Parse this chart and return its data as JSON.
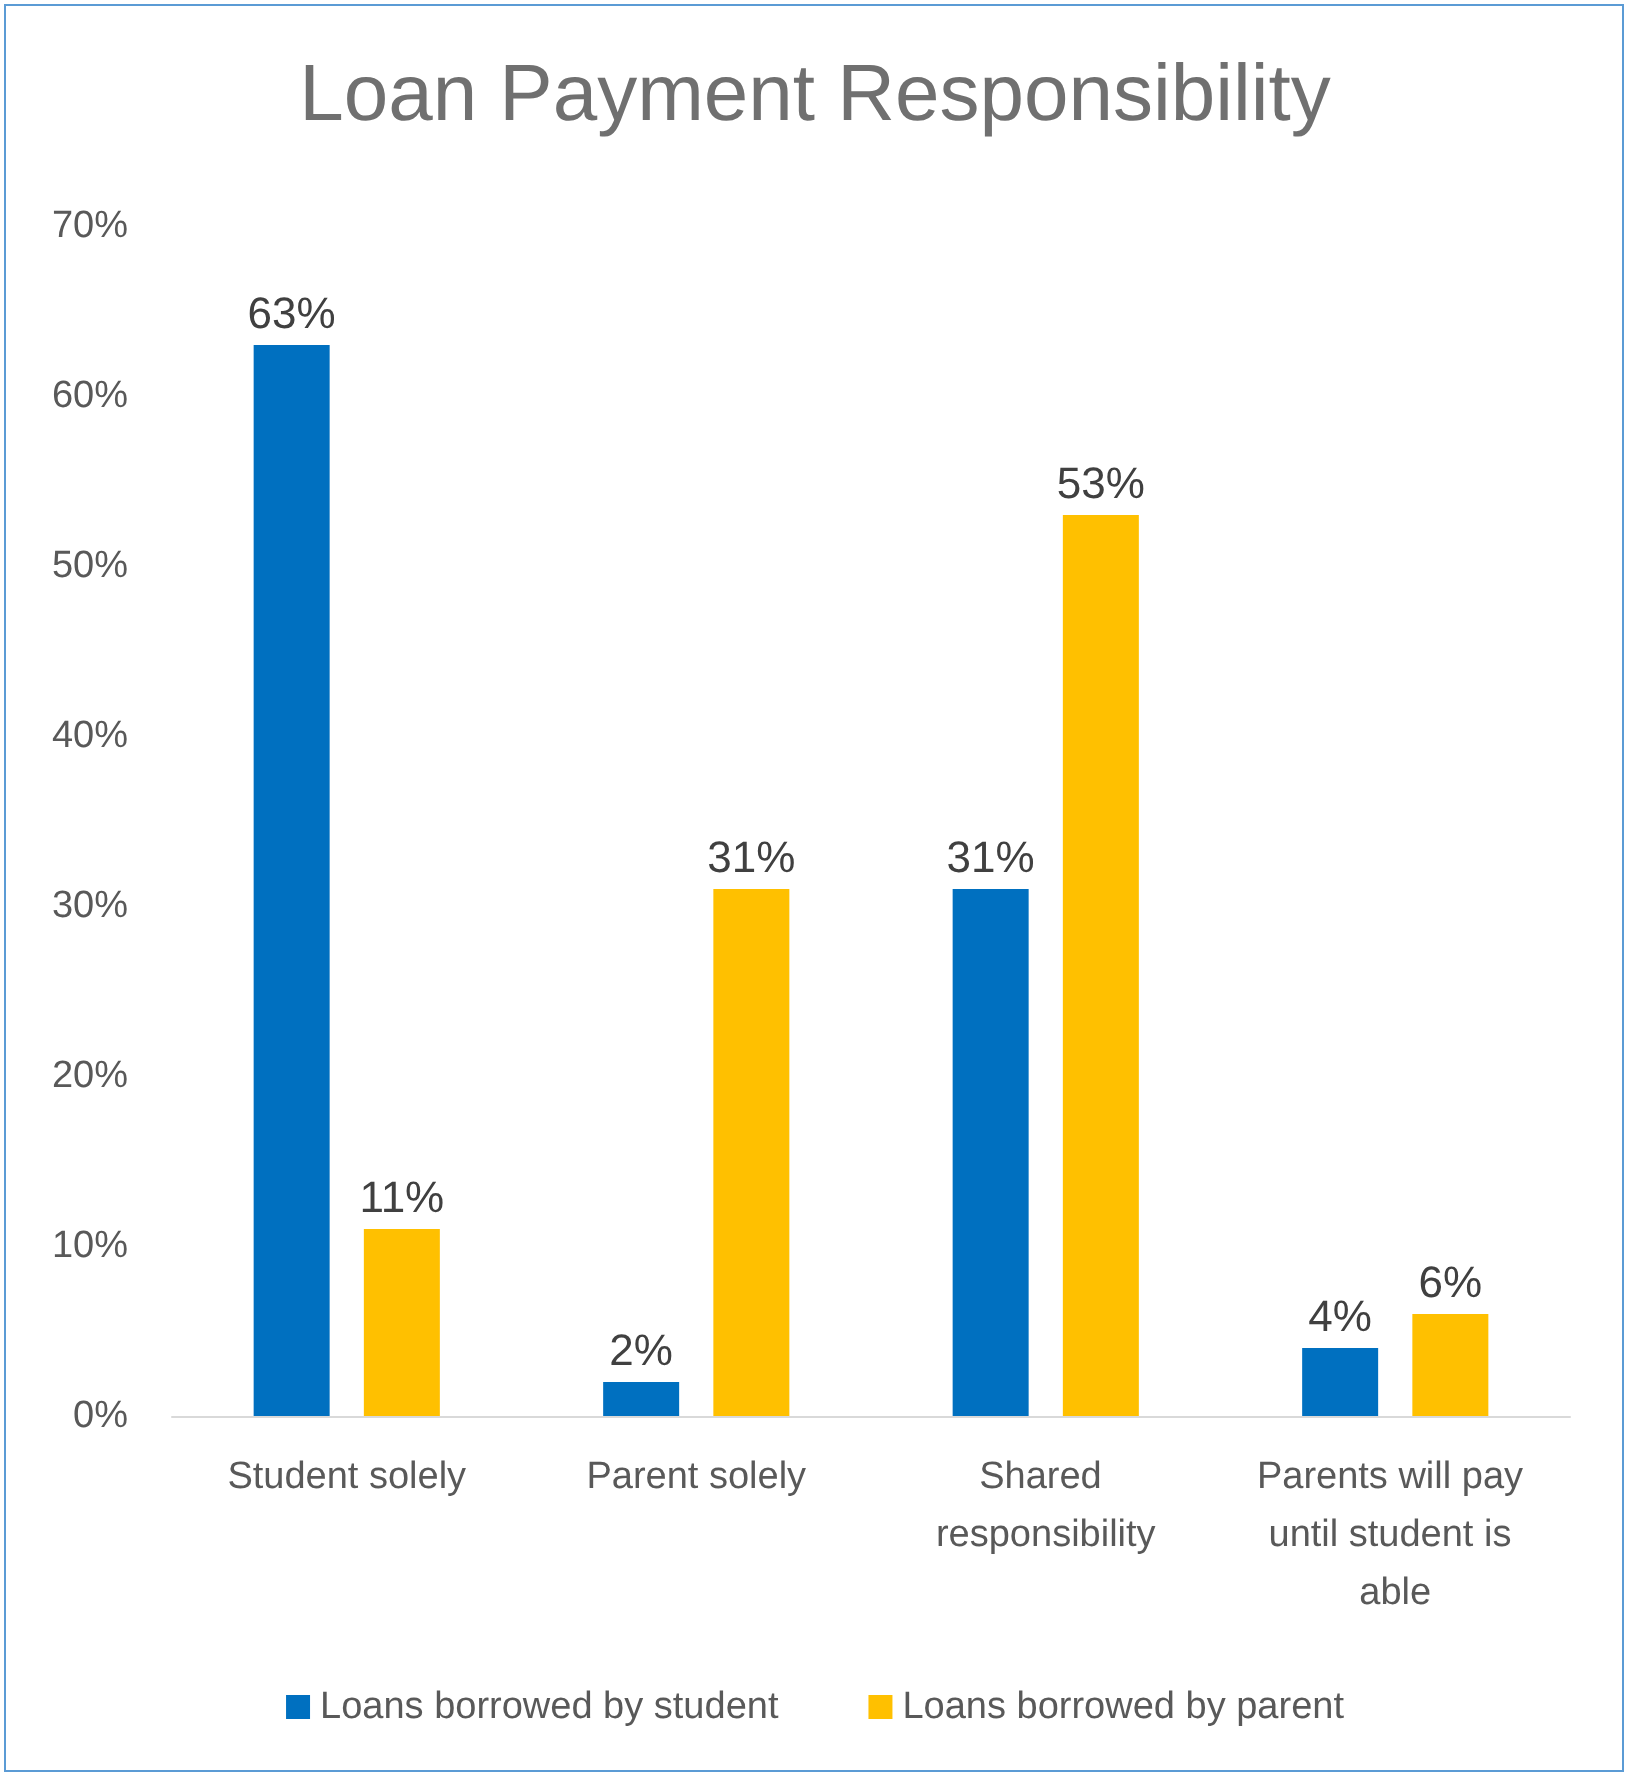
{
  "chart_data": {
    "type": "bar",
    "title": "Loan Payment Responsibility",
    "categories": [
      "Student solely",
      "Parent solely",
      "Shared responsibility",
      "Parents will pay until student is able"
    ],
    "series": [
      {
        "name": "Loans borrowed by student",
        "color": "#0070c0",
        "values": [
          63,
          2,
          31,
          4
        ],
        "value_labels": [
          "63%",
          "2%",
          "31%",
          "4%"
        ]
      },
      {
        "name": "Loans borrowed by parent",
        "color": "#ffc000",
        "values": [
          11,
          31,
          53,
          6
        ],
        "value_labels": [
          "11%",
          "31%",
          "53%",
          "6%"
        ]
      }
    ],
    "ylim": [
      0,
      70
    ],
    "yticks": [
      {
        "value": 0,
        "label": "0%"
      },
      {
        "value": 10,
        "label": "10%"
      },
      {
        "value": 20,
        "label": "20%"
      },
      {
        "value": 30,
        "label": "30%"
      },
      {
        "value": 40,
        "label": "40%"
      },
      {
        "value": 50,
        "label": "50%"
      },
      {
        "value": 60,
        "label": "60%"
      },
      {
        "value": 70,
        "label": "70%"
      }
    ],
    "legend": "bottom"
  }
}
